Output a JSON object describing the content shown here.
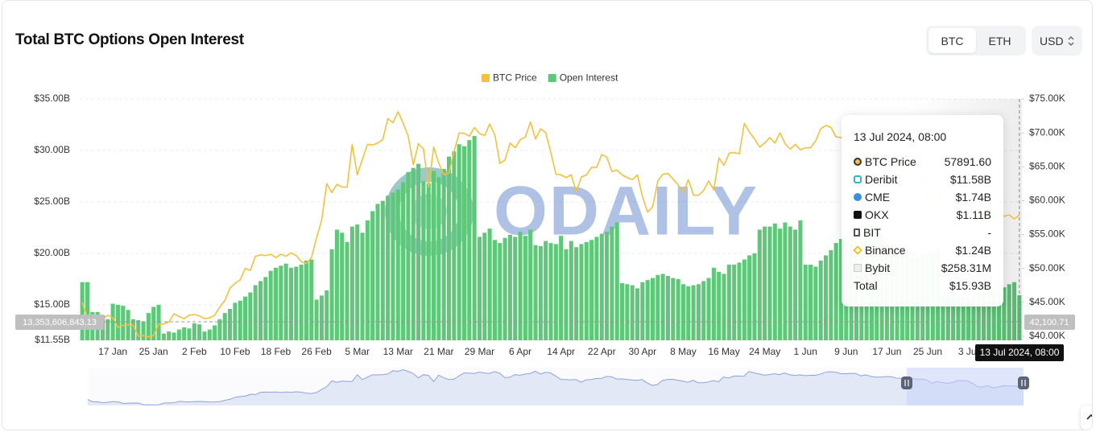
{
  "chart_data": {
    "type": "bar",
    "title": "Total BTC Options Open Interest",
    "categories": [
      null,
      null,
      null,
      null,
      null,
      null,
      "17 Jan",
      null,
      null,
      null,
      null,
      null,
      null,
      null,
      "25 Jan",
      null,
      null,
      null,
      null,
      null,
      null,
      null,
      "2 Feb",
      null,
      null,
      null,
      null,
      null,
      null,
      null,
      "10 Feb",
      null,
      null,
      null,
      null,
      null,
      null,
      null,
      "18 Feb",
      null,
      null,
      null,
      null,
      null,
      null,
      null,
      "26 Feb",
      null,
      null,
      null,
      null,
      null,
      null,
      null,
      "5 Mar",
      null,
      null,
      null,
      null,
      null,
      null,
      null,
      "13 Mar",
      null,
      null,
      null,
      null,
      null,
      null,
      null,
      "21 Mar",
      null,
      null,
      null,
      null,
      null,
      null,
      null,
      "29 Mar",
      null,
      null,
      null,
      null,
      null,
      null,
      null,
      "6 Apr",
      null,
      null,
      null,
      null,
      null,
      null,
      null,
      "14 Apr",
      null,
      null,
      null,
      null,
      null,
      null,
      null,
      "22 Apr",
      null,
      null,
      null,
      null,
      null,
      null,
      null,
      "30 Apr",
      null,
      null,
      null,
      null,
      null,
      null,
      null,
      "8 May",
      null,
      null,
      null,
      null,
      null,
      null,
      null,
      "16 May",
      null,
      null,
      null,
      null,
      null,
      null,
      null,
      "24 May",
      null,
      null,
      null,
      null,
      null,
      null,
      null,
      "1 Jun",
      null,
      null,
      null,
      null,
      null,
      null,
      null,
      "9 Jun",
      null,
      null,
      null,
      null,
      null,
      null,
      null,
      "17 Jun",
      null,
      null,
      null,
      null,
      null,
      null,
      null,
      "25 Jun",
      null,
      null,
      null,
      null,
      null,
      null,
      null,
      "3 Jul",
      null,
      null,
      null,
      null,
      null,
      null,
      null,
      null,
      null,
      null
    ],
    "series": [
      {
        "name": "BTC Price",
        "type": "line",
        "axis": "y2",
        "color": "#f2c23c",
        "values": [
          45.0,
          42.8,
          42.9,
          41.8,
          42.5,
          43.1,
          42.7,
          41.3,
          41.6,
          41.7,
          41.6,
          40.0,
          40.1,
          39.9,
          40.1,
          41.8,
          41.8,
          42.1,
          43.3,
          42.9,
          42.6,
          43.1,
          43.2,
          43.0,
          42.6,
          42.7,
          43.1,
          44.3,
          45.3,
          47.1,
          47.8,
          48.3,
          50.0,
          49.7,
          51.8,
          52.0,
          51.9,
          52.1,
          51.6,
          52.1,
          51.8,
          52.3,
          51.9,
          51.0,
          50.7,
          51.6,
          54.5,
          57.1,
          62.5,
          61.2,
          62.4,
          62.0,
          62.0,
          68.3,
          63.8,
          66.1,
          68.3,
          68.2,
          68.5,
          69.0,
          72.1,
          71.5,
          73.1,
          71.4,
          69.5,
          65.3,
          68.4,
          67.6,
          62.0,
          67.9,
          65.5,
          63.8,
          64.1,
          67.2,
          70.0,
          69.9,
          69.5,
          70.8,
          69.9,
          69.6,
          71.3,
          69.7,
          65.5,
          66.0,
          68.5,
          67.8,
          69.0,
          69.4,
          71.6,
          69.1,
          70.6,
          70.0,
          67.1,
          63.9,
          63.8,
          63.4,
          63.8,
          61.3,
          63.5,
          63.8,
          64.9,
          64.9,
          66.8,
          66.4,
          64.3,
          64.5,
          63.8,
          63.4,
          63.1,
          63.8,
          60.6,
          58.3,
          59.1,
          62.9,
          63.9,
          64.0,
          63.2,
          62.3,
          61.2,
          63.1,
          60.8,
          60.8,
          61.5,
          62.9,
          61.6,
          66.3,
          65.2,
          67.0,
          67.1,
          66.9,
          71.4,
          70.1,
          69.1,
          67.9,
          68.5,
          69.3,
          68.5,
          70.0,
          68.4,
          67.6,
          68.3,
          67.5,
          67.8,
          67.8,
          68.8,
          70.6,
          71.1,
          70.8,
          69.4,
          69.3,
          69.6,
          69.5,
          67.3,
          68.2,
          66.8,
          66.0,
          66.2,
          66.6,
          66.5,
          65.2,
          65.0,
          64.9,
          64.8,
          64.1,
          64.3,
          63.2,
          60.3,
          61.8,
          61.0,
          60.3,
          60.9,
          62.7,
          62.9,
          62.6,
          60.2,
          57.0,
          56.7,
          58.2,
          55.9,
          56.7,
          58.0,
          57.7,
          57.9,
          57.3,
          57.89
        ]
      },
      {
        "name": "Open Interest",
        "type": "bar",
        "axis": "y",
        "color": "#5cc878",
        "values": [
          17.2,
          17.2,
          14.3,
          14.3,
          14.0,
          13.6,
          15.1,
          15.0,
          14.9,
          14.5,
          13.6,
          13.5,
          13.4,
          14.2,
          14.8,
          15.0,
          12.2,
          12.4,
          12.3,
          12.6,
          12.8,
          12.7,
          13.2,
          13.1,
          12.4,
          12.6,
          13.0,
          13.6,
          14.2,
          14.6,
          15.2,
          15.4,
          15.8,
          16.2,
          16.9,
          17.3,
          17.7,
          18.3,
          18.6,
          18.8,
          19.0,
          18.6,
          18.7,
          18.9,
          19.3,
          19.4,
          15.5,
          15.9,
          16.4,
          20.4,
          22.3,
          22.0,
          21.1,
          22.6,
          22.8,
          22.0,
          23.2,
          24.1,
          24.8,
          25.1,
          25.6,
          25.9,
          26.2,
          26.9,
          27.9,
          28.3,
          28.7,
          27.0,
          26.8,
          28.0,
          27.4,
          28.2,
          29.4,
          29.9,
          30.6,
          30.4,
          31.0,
          31.4,
          21.6,
          22.0,
          22.4,
          21.3,
          21.0,
          21.5,
          21.8,
          21.6,
          22.1,
          21.7,
          22.3,
          20.8,
          20.7,
          21.2,
          21.0,
          20.9,
          21.7,
          20.4,
          21.2,
          20.6,
          20.9,
          21.1,
          21.3,
          21.6,
          21.9,
          22.1,
          22.6,
          23.0,
          17.1,
          17.0,
          16.9,
          16.6,
          17.2,
          17.4,
          17.6,
          17.9,
          18.0,
          17.8,
          17.6,
          17.5,
          17.0,
          16.8,
          16.9,
          17.0,
          17.3,
          17.6,
          18.6,
          18.2,
          18.0,
          18.9,
          18.9,
          19.1,
          19.4,
          19.8,
          20.0,
          22.3,
          22.6,
          22.6,
          22.9,
          22.4,
          23.0,
          22.6,
          22.3,
          23.2,
          18.9,
          18.9,
          18.7,
          19.3,
          19.8,
          20.3,
          21.0,
          21.4,
          21.7,
          22.2,
          22.0,
          21.5,
          22.0,
          22.5,
          21.7,
          21.4,
          20.9,
          20.5,
          20.2,
          20.5,
          20.3,
          20.1,
          19.6,
          19.9,
          20.0,
          20.2,
          20.4,
          15.8,
          16.0,
          16.2,
          15.9,
          15.7,
          15.6,
          15.9,
          15.9,
          16.1,
          16.3,
          16.5,
          16.6,
          16.7,
          17.0,
          17.2,
          15.93
        ]
      }
    ],
    "ylim": [
      11.55,
      35
    ],
    "yticks": [
      {
        "value": 11.55,
        "label": "$11.55B"
      },
      {
        "value": 15,
        "label": "$15.00B"
      },
      {
        "value": 20,
        "label": "$20.00B"
      },
      {
        "value": 25,
        "label": "$25.00B"
      },
      {
        "value": 30,
        "label": "$30.00B"
      },
      {
        "value": 35,
        "label": "$35.00B"
      }
    ],
    "y2lim": [
      39.4,
      75
    ],
    "y2ticks": [
      {
        "value": 40,
        "label": "$40.00K"
      },
      {
        "value": 45,
        "label": "$45.00K"
      },
      {
        "value": 50,
        "label": "$50.00K"
      },
      {
        "value": 55,
        "label": "$55.00K"
      },
      {
        "value": 60,
        "label": "$60.00K"
      },
      {
        "value": 65,
        "label": "$65.00K"
      },
      {
        "value": 70,
        "label": "$70.00K"
      },
      {
        "value": 75,
        "label": "$75.00K"
      }
    ],
    "grid": true,
    "legend": "top",
    "crosshair": {
      "y": "13,353,606,843.13",
      "y2": "42,100.71",
      "x": "13 Jul 2024, 08:00"
    },
    "watermark": "ODAILY"
  },
  "controls": {
    "assets": [
      "BTC",
      "ETH"
    ],
    "currency": "USD"
  },
  "tooltip": {
    "title": "13 Jul 2024, 08:00",
    "rows": [
      {
        "label": "BTC Price",
        "value": "57891.60"
      },
      {
        "label": "Deribit",
        "value": "$11.58B"
      },
      {
        "label": "CME",
        "value": "$1.74B"
      },
      {
        "label": "OKX",
        "value": "$1.11B"
      },
      {
        "label": "BIT",
        "value": "-"
      },
      {
        "label": "Binance",
        "value": "$1.24B"
      },
      {
        "label": "Bybit",
        "value": "$258.31M"
      },
      {
        "label": "Total",
        "value": "$15.93B"
      }
    ]
  }
}
